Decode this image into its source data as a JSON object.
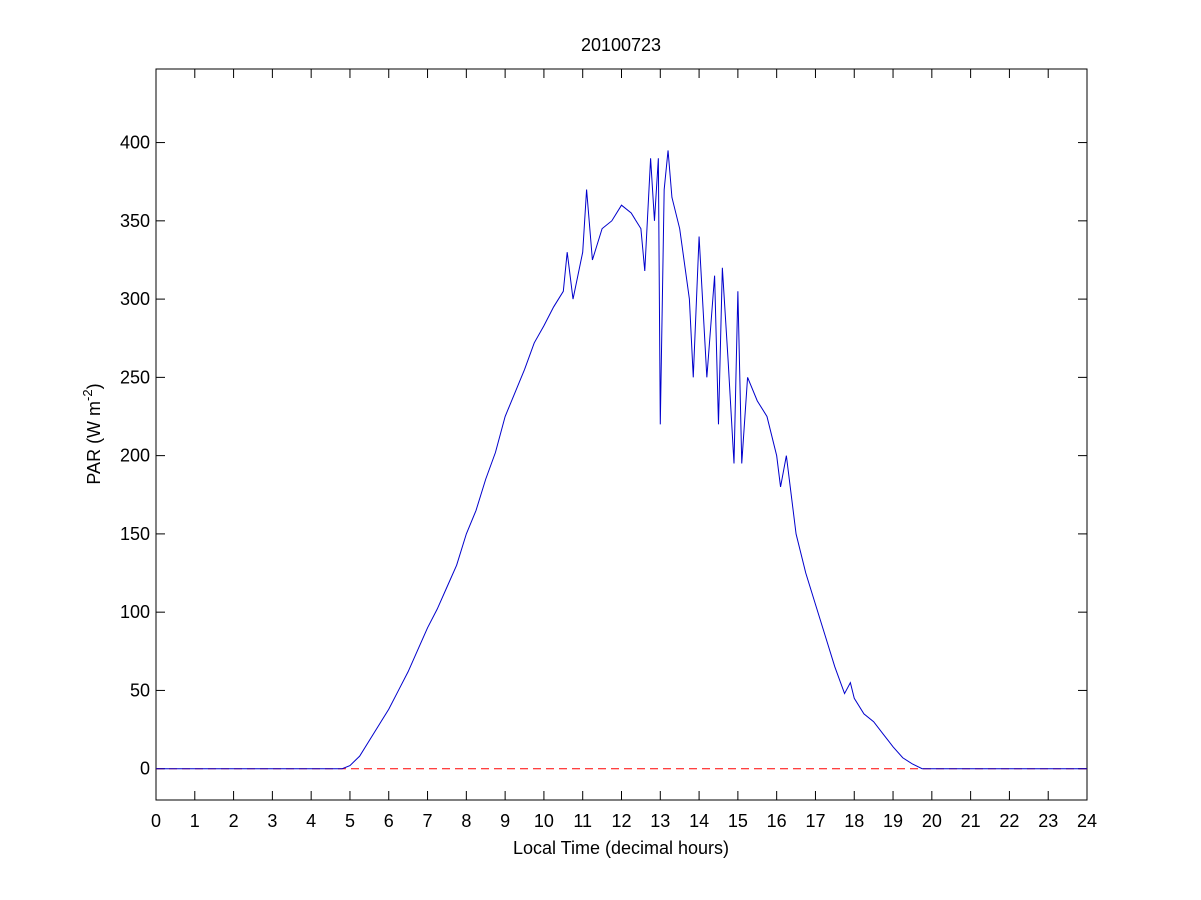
{
  "chart_data": {
    "type": "line",
    "title": "20100723",
    "xlabel": "Local Time (decimal hours)",
    "ylabel": {
      "text": "PAR (W m",
      "superscript": "-2",
      "suffix": ")"
    },
    "x": [
      0,
      4.8,
      5.0,
      5.25,
      5.5,
      5.75,
      6.0,
      6.25,
      6.5,
      6.75,
      7.0,
      7.25,
      7.5,
      7.75,
      8.0,
      8.25,
      8.5,
      8.75,
      9.0,
      9.25,
      9.5,
      9.75,
      10.0,
      10.25,
      10.5,
      10.6,
      10.75,
      11.0,
      11.1,
      11.25,
      11.5,
      11.75,
      12.0,
      12.25,
      12.5,
      12.6,
      12.75,
      12.85,
      12.95,
      13.0,
      13.1,
      13.2,
      13.3,
      13.5,
      13.75,
      13.85,
      14.0,
      14.2,
      14.4,
      14.5,
      14.6,
      14.75,
      14.9,
      15.0,
      15.1,
      15.25,
      15.5,
      15.75,
      16.0,
      16.1,
      16.25,
      16.5,
      16.75,
      17.0,
      17.25,
      17.5,
      17.75,
      17.9,
      18.0,
      18.25,
      18.5,
      18.75,
      19.0,
      19.25,
      19.5,
      19.75,
      20.0,
      24
    ],
    "values": [
      0,
      0,
      2,
      8,
      18,
      28,
      38,
      50,
      62,
      76,
      90,
      102,
      116,
      130,
      150,
      165,
      185,
      202,
      225,
      240,
      255,
      272,
      283,
      295,
      305,
      330,
      300,
      330,
      370,
      325,
      345,
      350,
      360,
      355,
      345,
      318,
      390,
      350,
      390,
      220,
      370,
      395,
      365,
      345,
      300,
      250,
      340,
      250,
      315,
      220,
      320,
      260,
      195,
      305,
      195,
      250,
      235,
      225,
      200,
      180,
      200,
      150,
      125,
      105,
      85,
      65,
      48,
      55,
      45,
      35,
      30,
      22,
      14,
      7,
      3,
      0,
      0,
      0
    ],
    "color": "#0000cc",
    "reference_line": {
      "y": 0,
      "color": "#ff0000",
      "style": "dashed"
    },
    "xlim": [
      0,
      24
    ],
    "xticks": [
      0,
      1,
      2,
      3,
      4,
      5,
      6,
      7,
      8,
      9,
      10,
      11,
      12,
      13,
      14,
      15,
      16,
      17,
      18,
      19,
      20,
      21,
      22,
      23,
      24
    ],
    "ylim": [
      -20,
      447
    ],
    "yticks": [
      0,
      50,
      100,
      150,
      200,
      250,
      300,
      350,
      400
    ]
  }
}
